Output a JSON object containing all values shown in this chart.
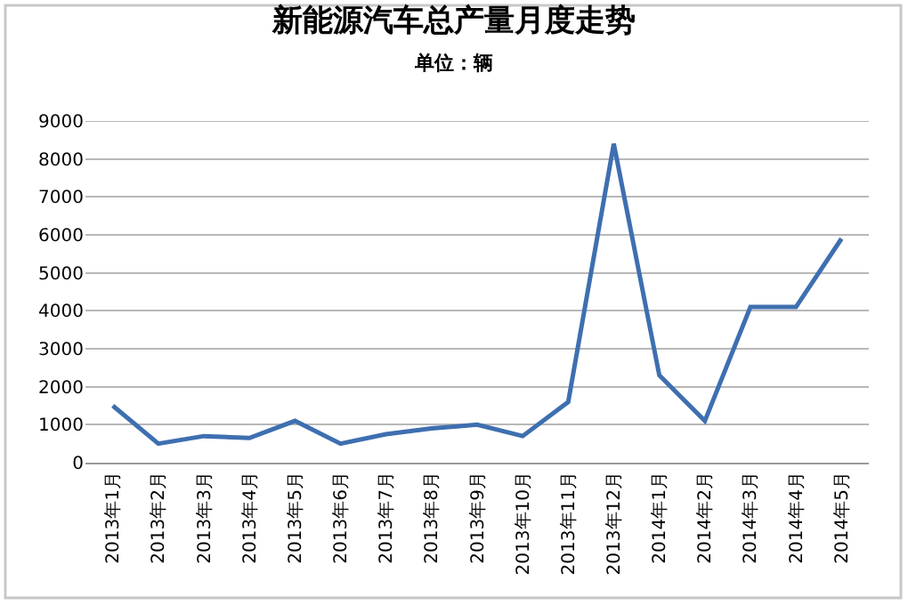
{
  "chart_data": {
    "type": "line",
    "title": "新能源汽车总产量月度走势",
    "subtitle": "单位：辆",
    "categories": [
      "2013年1月",
      "2013年2月",
      "2013年3月",
      "2013年4月",
      "2013年5月",
      "2013年6月",
      "2013年7月",
      "2013年8月",
      "2013年9月",
      "2013年10月",
      "2013年11月",
      "2013年12月",
      "2014年1月",
      "2014年2月",
      "2014年3月",
      "2014年4月",
      "2014年5月"
    ],
    "series": [
      {
        "color": "#3e6fb0",
        "values": [
          1500,
          500,
          700,
          650,
          1100,
          500,
          750,
          900,
          1000,
          700,
          1600,
          8400,
          2300,
          1100,
          4100,
          4100,
          5900
        ]
      }
    ],
    "ylim": [
      0,
      9000
    ],
    "yticks": [
      0,
      1000,
      2000,
      3000,
      4000,
      5000,
      6000,
      7000,
      8000,
      9000
    ],
    "grid": "y",
    "marker": "none",
    "line_style": "solid"
  }
}
